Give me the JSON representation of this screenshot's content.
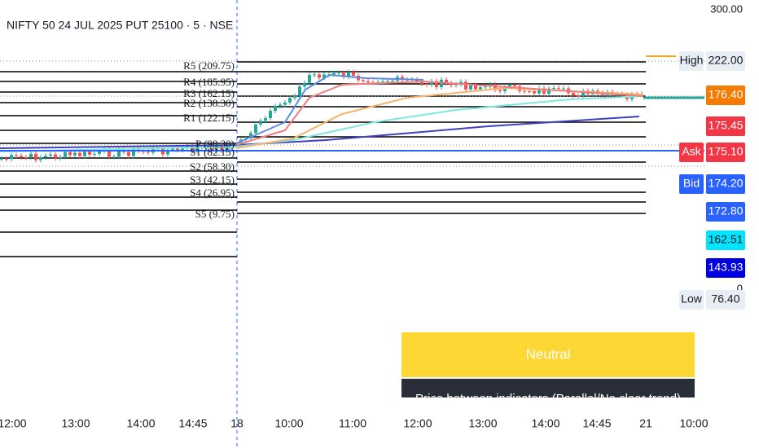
{
  "header": {
    "title": "NIFTY 50 24 JUL 2025 PUT 25100 · 5 · NSE"
  },
  "price_axis": {
    "top": "300.00",
    "zero": "0",
    "tags": [
      {
        "label": "High",
        "value": "222.00"
      },
      {
        "value": "176.40"
      },
      {
        "value": "175.45"
      },
      {
        "label": "Ask",
        "value": "175.10"
      },
      {
        "label": "Bid",
        "value": "174.20"
      },
      {
        "value": "172.80"
      },
      {
        "value": "162.51"
      },
      {
        "value": "143.93"
      },
      {
        "label": "Low",
        "value": "76.40"
      }
    ]
  },
  "pivots": [
    "R5 (209.75)",
    "R4 (185.95)",
    "R3 (162.15)",
    "R2 (138.30)",
    "R1 (122.15)",
    "P (98.30)",
    "S1 (82.15)",
    "S2 (58.30)",
    "S3 (42.15)",
    "S4 (26.95)",
    "S5 (9.75)"
  ],
  "time_axis": [
    "12:00",
    "13:00",
    "14:00",
    "14:45",
    "18",
    "10:00",
    "11:00",
    "12:00",
    "13:00",
    "14:00",
    "14:45",
    "21",
    "10:00"
  ],
  "panel": {
    "status": "Neutral",
    "message": "Price between indicators (Parallel/No clear trend)"
  }
}
